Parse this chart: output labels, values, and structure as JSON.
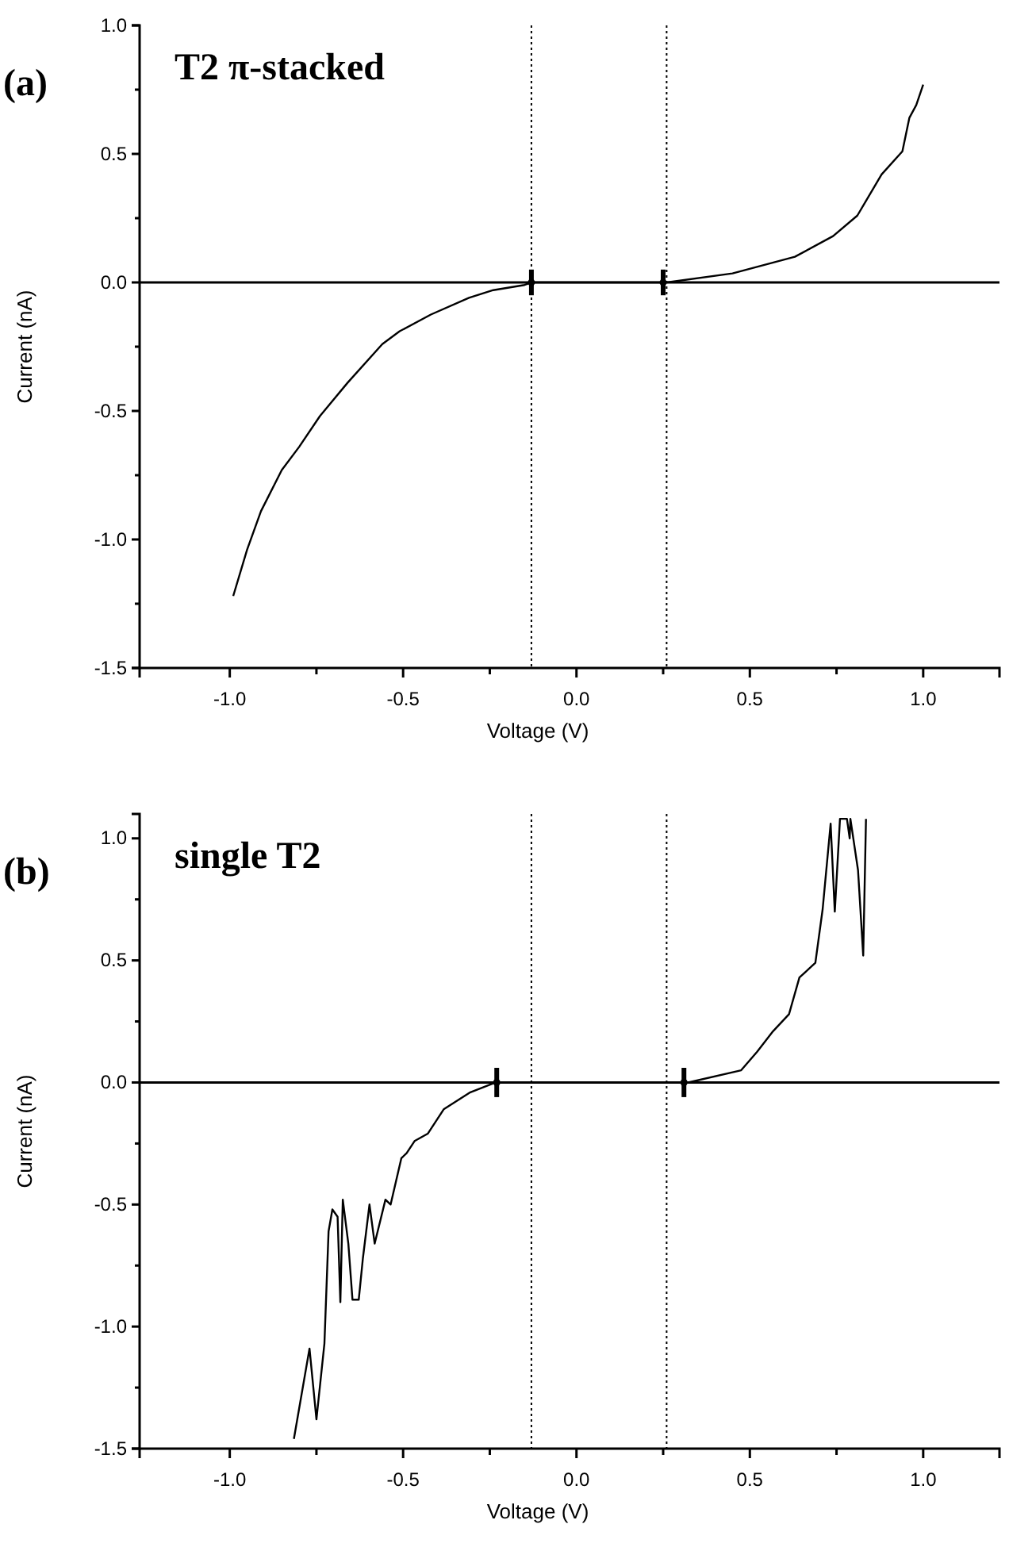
{
  "chart_data": [
    {
      "type": "line",
      "title": "T2 π-stacked",
      "xlabel": "Voltage (V)",
      "ylabel": "Current (nA)",
      "annotations": [
        "(a)"
      ],
      "xlim": [
        -1.26,
        1.22
      ],
      "ylim": [
        -1.5,
        1.0
      ],
      "xticks": [
        {
          "value": -1,
          "label": "-1.0"
        },
        {
          "value": -0.75,
          "label": null
        },
        {
          "value": -0.5,
          "label": "-0.5"
        },
        {
          "value": -0.25,
          "label": null
        },
        {
          "value": 0,
          "label": "0.0"
        },
        {
          "value": 0.25,
          "label": null
        },
        {
          "value": 0.5,
          "label": "0.5"
        },
        {
          "value": 0.75,
          "label": null
        },
        {
          "value": 1,
          "label": "1.0"
        }
      ],
      "yticks": [
        {
          "value": -1.5,
          "label": "-1.5"
        },
        {
          "value": -1.25,
          "label": null
        },
        {
          "value": -1,
          "label": "-1.0"
        },
        {
          "value": -0.75,
          "label": null
        },
        {
          "value": -0.5,
          "label": "-0.5"
        },
        {
          "value": -0.25,
          "label": null
        },
        {
          "value": 0,
          "label": "0.0"
        },
        {
          "value": 0.25,
          "label": null
        },
        {
          "value": 0.5,
          "label": "0.5"
        },
        {
          "value": 0.75,
          "label": null
        },
        {
          "value": 1,
          "label": "1.0"
        }
      ],
      "ref_lines": [
        {
          "axis": "y",
          "value": 0,
          "line_style": "solid",
          "color": "#000000"
        },
        {
          "axis": "x",
          "value": -0.13,
          "line_style": "dotted",
          "color": "#000000"
        },
        {
          "axis": "x",
          "value": 0.26,
          "line_style": "dotted",
          "color": "#000000"
        }
      ],
      "series": [
        {
          "type": "line",
          "color": "#000000",
          "x": [
            -0.99,
            -0.95,
            -0.91,
            -0.85,
            -0.8,
            -0.74,
            -0.66,
            -0.56,
            -0.51,
            -0.42,
            -0.31,
            -0.24,
            -0.15,
            -0.13,
            0,
            0.1,
            0.26,
            0.45,
            0.63,
            0.74,
            0.81,
            0.88,
            0.94,
            0.96,
            0.98,
            1.0
          ],
          "values": [
            -1.22,
            -1.04,
            -0.89,
            -0.73,
            -0.64,
            -0.52,
            -0.39,
            -0.24,
            -0.19,
            -0.125,
            -0.06,
            -0.03,
            -0.01,
            0,
            0,
            0,
            0,
            0.035,
            0.1,
            0.18,
            0.26,
            0.42,
            0.51,
            0.64,
            0.69,
            0.77
          ]
        },
        {
          "type": "scatter",
          "color": "#000000",
          "marker": "circle",
          "x": [
            -0.13,
            0.25
          ],
          "values": [
            0,
            0
          ],
          "errors": [
            0.05,
            0.05
          ]
        }
      ]
    },
    {
      "type": "line",
      "title": "single T2",
      "xlabel": "Voltage (V)",
      "ylabel": "Current (nA)",
      "annotations": [
        "(b)"
      ],
      "xlim": [
        -1.26,
        1.22
      ],
      "ylim": [
        -1.5,
        1.1
      ],
      "xticks": [
        {
          "value": -1,
          "label": "-1.0"
        },
        {
          "value": -0.75,
          "label": null
        },
        {
          "value": -0.5,
          "label": "-0.5"
        },
        {
          "value": -0.25,
          "label": null
        },
        {
          "value": 0,
          "label": "0.0"
        },
        {
          "value": 0.25,
          "label": null
        },
        {
          "value": 0.5,
          "label": "0.5"
        },
        {
          "value": 0.75,
          "label": null
        },
        {
          "value": 1,
          "label": "1.0"
        }
      ],
      "yticks": [
        {
          "value": -1.5,
          "label": "-1.5"
        },
        {
          "value": -1.25,
          "label": null
        },
        {
          "value": -1,
          "label": "-1.0"
        },
        {
          "value": -0.75,
          "label": null
        },
        {
          "value": -0.5,
          "label": "-0.5"
        },
        {
          "value": -0.25,
          "label": null
        },
        {
          "value": 0,
          "label": "0.0"
        },
        {
          "value": 0.25,
          "label": null
        },
        {
          "value": 0.5,
          "label": "0.5"
        },
        {
          "value": 0.75,
          "label": null
        },
        {
          "value": 1,
          "label": "1.0"
        }
      ],
      "ref_lines": [
        {
          "axis": "y",
          "value": 0,
          "line_style": "solid",
          "color": "#000000"
        },
        {
          "axis": "x",
          "value": -0.13,
          "line_style": "dotted",
          "color": "#000000"
        },
        {
          "axis": "x",
          "value": 0.26,
          "line_style": "dotted",
          "color": "#000000"
        }
      ],
      "series": [
        {
          "type": "line",
          "color": "#000000",
          "x": [
            -0.815,
            -0.77,
            -0.75,
            -0.727,
            -0.715,
            -0.704,
            -0.689,
            -0.681,
            -0.674,
            -0.658,
            -0.646,
            -0.628,
            -0.616,
            -0.597,
            -0.582,
            -0.551,
            -0.536,
            -0.505,
            -0.49,
            -0.467,
            -0.429,
            -0.383,
            -0.306,
            -0.233,
            0,
            0.322,
            0.475,
            0.521,
            0.567,
            0.613,
            0.643,
            0.689,
            0.71,
            0.733,
            0.745,
            0.76,
            0.78,
            0.788,
            0.79,
            0.812,
            0.827,
            0.835
          ],
          "values": [
            -1.46,
            -1.09,
            -1.38,
            -1.07,
            -0.61,
            -0.52,
            -0.55,
            -0.9,
            -0.48,
            -0.66,
            -0.89,
            -0.89,
            -0.72,
            -0.5,
            -0.66,
            -0.48,
            -0.5,
            -0.31,
            -0.29,
            -0.24,
            -0.21,
            -0.11,
            -0.04,
            0,
            0,
            0,
            0.05,
            0.126,
            0.21,
            0.28,
            0.43,
            0.49,
            0.71,
            1.06,
            0.7,
            1.08,
            1.08,
            1.0,
            1.08,
            0.87,
            0.52,
            1.08
          ]
        },
        {
          "type": "scatter",
          "color": "#000000",
          "marker": "circle",
          "x": [
            -0.23,
            0.31
          ],
          "values": [
            0,
            0
          ],
          "errors": [
            0.06,
            0.06
          ]
        }
      ]
    }
  ]
}
